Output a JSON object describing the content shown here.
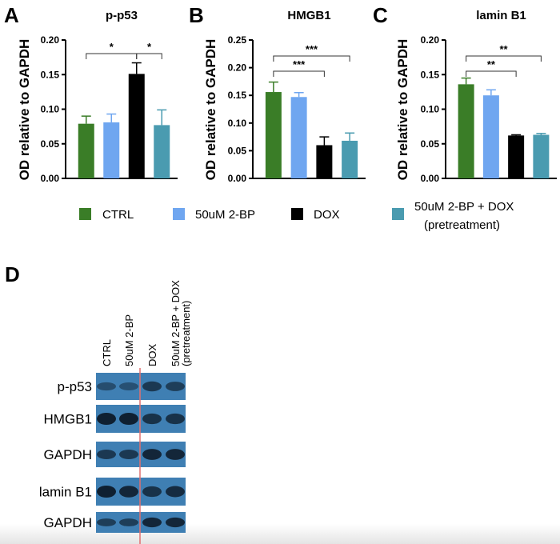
{
  "chart_data": [
    {
      "type": "bar",
      "panel": "A",
      "title": "p-p53",
      "ylabel": "OD relative to GAPDH",
      "ylim": [
        0,
        0.2
      ],
      "yticks": [
        "0.00",
        "0.05",
        "0.10",
        "0.15",
        "0.20"
      ],
      "categories": [
        "CTRL",
        "50uM 2-BP",
        "DOX",
        "50uM 2-BP + DOX (pretreatment)"
      ],
      "values": [
        0.079,
        0.081,
        0.151,
        0.077
      ],
      "errors": [
        0.011,
        0.012,
        0.016,
        0.022
      ],
      "significance": [
        {
          "from": 0,
          "to": 2,
          "label": "*"
        },
        {
          "from": 2,
          "to": 3,
          "label": "*"
        }
      ]
    },
    {
      "type": "bar",
      "panel": "B",
      "title": "HMGB1",
      "ylabel": "OD relative to GAPDH",
      "ylim": [
        0,
        0.25
      ],
      "yticks": [
        "0.00",
        "0.05",
        "0.10",
        "0.15",
        "0.20",
        "0.25"
      ],
      "categories": [
        "CTRL",
        "50uM 2-BP",
        "DOX",
        "50uM 2-BP + DOX (pretreatment)"
      ],
      "values": [
        0.156,
        0.147,
        0.06,
        0.068
      ],
      "errors": [
        0.018,
        0.008,
        0.015,
        0.014
      ],
      "significance": [
        {
          "from": 0,
          "to": 3,
          "label": "***"
        },
        {
          "from": 0,
          "to": 2,
          "label": "***"
        }
      ]
    },
    {
      "type": "bar",
      "panel": "C",
      "title": "lamin B1",
      "ylabel": "OD relative to GAPDH",
      "ylim": [
        0,
        0.2
      ],
      "yticks": [
        "0.00",
        "0.05",
        "0.10",
        "0.15",
        "0.20"
      ],
      "categories": [
        "CTRL",
        "50uM 2-BP",
        "DOX",
        "50uM 2-BP + DOX (pretreatment)"
      ],
      "values": [
        0.136,
        0.12,
        0.062,
        0.063
      ],
      "errors": [
        0.009,
        0.008,
        0.001,
        0.002
      ],
      "significance": [
        {
          "from": 0,
          "to": 3,
          "label": "**"
        },
        {
          "from": 0,
          "to": 2,
          "label": "**"
        }
      ]
    }
  ],
  "colors": [
    "#3a7d27",
    "#6fa6f0",
    "#000000",
    "#4a9bb0"
  ],
  "legend": {
    "items": [
      {
        "label": "CTRL"
      },
      {
        "label": "50uM 2-BP"
      },
      {
        "label": "DOX"
      },
      {
        "label": "50uM 2-BP + DOX",
        "label2": "(pretreatment)"
      }
    ]
  },
  "blot": {
    "panel": "D",
    "lanes": [
      "CTRL",
      "50uM 2-BP",
      "DOX",
      "50uM 2-BP + DOX"
    ],
    "lane4_sub": "(pretreatment)",
    "rows": [
      "p-p53",
      "HMGB1",
      "GAPDH",
      "lamin B1",
      "GAPDH"
    ]
  }
}
